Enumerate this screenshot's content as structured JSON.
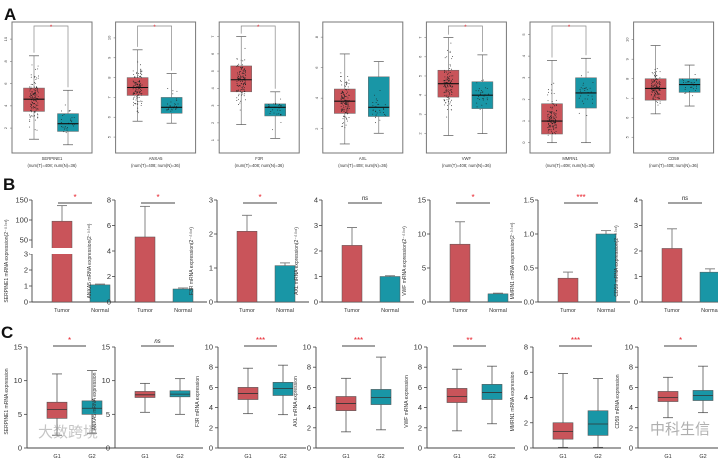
{
  "panel_letters": [
    "A",
    "B",
    "C"
  ],
  "colors": {
    "tumor": "#c9545a",
    "normal": "#1996a6",
    "sig": "#e8202a",
    "ns": "#222222"
  },
  "watermark": {
    "left": "大数跨境",
    "right": "中科生信"
  },
  "chart_data": [
    {
      "panel": "A",
      "type": "boxplot",
      "groups": [
        "Tumor",
        "Normal"
      ],
      "counts_label": "(num(T)=408; num(N)=36)",
      "charts": [
        {
          "gene": "SERPINE1",
          "ylim": [
            0.3,
            11
          ],
          "ticks": [
            2,
            4,
            6,
            8,
            10
          ],
          "sig": "*",
          "boxes": [
            [
              1.0,
              3.5,
              4.6,
              5.6,
              8.5
            ],
            [
              0.5,
              1.7,
              2.4,
              3.3,
              5.4
            ]
          ]
        },
        {
          "gene": "ANXA5",
          "ylim": [
            4.5,
            10.5
          ],
          "ticks": [
            5,
            6,
            7,
            8,
            9,
            10
          ],
          "sig": "*",
          "boxes": [
            [
              5.8,
              7.1,
              7.5,
              8.0,
              9.4
            ],
            [
              5.7,
              6.2,
              6.5,
              7.0,
              8.2
            ]
          ]
        },
        {
          "gene": "F3R",
          "ylim": [
            0.6,
            7.5
          ],
          "ticks": [
            1,
            2,
            3,
            4,
            5,
            6,
            7
          ],
          "sig": "*",
          "boxes": [
            [
              1.9,
              3.8,
              4.5,
              5.3,
              7.0
            ],
            [
              1.1,
              2.4,
              2.9,
              3.1,
              3.8
            ]
          ]
        },
        {
          "gene": "AXL",
          "ylim": [
            0.8,
            8.6
          ],
          "ticks": [
            2,
            4,
            6,
            8
          ],
          "sig": "",
          "boxes": [
            [
              1.0,
              3.0,
              3.8,
              4.6,
              6.9
            ],
            [
              1.7,
              2.8,
              3.4,
              5.4,
              6.4
            ]
          ]
        },
        {
          "gene": "VWF",
          "ylim": [
            1.3,
            7.5
          ],
          "ticks": [
            2,
            3,
            4,
            5,
            6,
            7
          ],
          "sig": "*",
          "boxes": [
            [
              1.9,
              3.9,
              4.6,
              5.3,
              7.0
            ],
            [
              2.0,
              3.3,
              4.0,
              4.7,
              6.1
            ]
          ]
        },
        {
          "gene": "MMRN1",
          "ylim": [
            -0.2,
            5.3
          ],
          "ticks": [
            0,
            1,
            2,
            3,
            4,
            5
          ],
          "sig": "*",
          "boxes": [
            [
              0.0,
              0.4,
              1.0,
              1.8,
              3.8
            ],
            [
              0.0,
              1.6,
              2.3,
              3.0,
              3.9
            ]
          ]
        },
        {
          "gene": "CD59",
          "ylim": [
            4.5,
            10.6
          ],
          "ticks": [
            5,
            6,
            7,
            8,
            9,
            10
          ],
          "sig": "",
          "boxes": [
            [
              6.2,
              6.9,
              7.5,
              8.0,
              9.7
            ],
            [
              6.6,
              7.3,
              7.7,
              8.0,
              8.7
            ]
          ]
        }
      ]
    },
    {
      "panel": "B",
      "type": "bar",
      "categories": [
        "Tumor",
        "Normal"
      ],
      "ylabel_suffix": " mRNA expression(2⁻ᐞᐞᶜᵗ)",
      "charts": [
        {
          "gene": "SERPINE1",
          "ylim": [
            0,
            150
          ],
          "ticks": [
            0,
            1,
            2,
            3,
            50,
            100,
            150
          ],
          "axis_break": [
            3,
            30
          ],
          "sig": "*",
          "values": [
            97,
            1.07
          ],
          "errors": [
            136,
            1.12
          ]
        },
        {
          "gene": "ANXA5",
          "ylim": [
            0,
            8
          ],
          "ticks": [
            0,
            2,
            4,
            6,
            8
          ],
          "sig": "*",
          "values": [
            5.1,
            1.02
          ],
          "errors": [
            7.5,
            1.1
          ]
        },
        {
          "gene": "F3R",
          "ylim": [
            0,
            3
          ],
          "ticks": [
            0,
            1,
            2,
            3
          ],
          "sig": "*",
          "values": [
            2.08,
            1.07
          ],
          "errors": [
            2.55,
            1.15
          ]
        },
        {
          "gene": "AXL",
          "ylim": [
            0,
            4
          ],
          "ticks": [
            0,
            1,
            2,
            3,
            4
          ],
          "sig": "ns",
          "values": [
            2.22,
            1.0
          ],
          "errors": [
            2.92,
            1.03
          ]
        },
        {
          "gene": "VWF",
          "ylim": [
            0,
            15
          ],
          "ticks": [
            0,
            5,
            10,
            15
          ],
          "sig": "*",
          "values": [
            8.5,
            1.2
          ],
          "errors": [
            11.8,
            1.3
          ]
        },
        {
          "gene": "MMRN1",
          "ylim": [
            0,
            1.5
          ],
          "ticks": [
            "0.0",
            "0.5",
            "1.0",
            "1.5"
          ],
          "sig": "***",
          "values": [
            0.35,
            1.0
          ],
          "errors": [
            0.44,
            1.05
          ]
        },
        {
          "gene": "CD59",
          "ylim": [
            0,
            4
          ],
          "ticks": [
            0,
            1,
            2,
            3,
            4
          ],
          "sig": "ns",
          "values": [
            2.1,
            1.17
          ],
          "errors": [
            2.87,
            1.3
          ]
        }
      ]
    },
    {
      "panel": "C",
      "type": "boxplot",
      "groups": [
        "G1",
        "G2"
      ],
      "ylabel_suffix": " mRNA expression",
      "charts": [
        {
          "gene": "SERPINE1",
          "ylim": [
            0,
            15
          ],
          "ticks": [
            0,
            5,
            10,
            15
          ],
          "sig": "*",
          "boxes": [
            [
              1.9,
              4.4,
              5.7,
              6.8,
              11.0
            ],
            [
              2.2,
              5.0,
              5.9,
              7.0,
              11.5
            ]
          ]
        },
        {
          "gene": "ANXA5",
          "ylim": [
            0,
            15
          ],
          "ticks": [
            0,
            5,
            10,
            15
          ],
          "sig": "ns",
          "boxes": [
            [
              5.3,
              7.5,
              7.9,
              8.4,
              9.6
            ],
            [
              5.0,
              7.6,
              8.0,
              8.5,
              10.3
            ]
          ]
        },
        {
          "gene": "F3R",
          "ylim": [
            0,
            10
          ],
          "ticks": [
            0,
            2,
            4,
            6,
            8,
            10
          ],
          "sig": "***",
          "boxes": [
            [
              3.4,
              4.8,
              5.4,
              6.0,
              7.9
            ],
            [
              3.3,
              5.2,
              5.9,
              6.5,
              8.2
            ]
          ]
        },
        {
          "gene": "AXL",
          "ylim": [
            0,
            10
          ],
          "ticks": [
            0,
            2,
            4,
            6,
            8,
            10
          ],
          "sig": "***",
          "boxes": [
            [
              1.6,
              3.7,
              4.4,
              5.1,
              6.9
            ],
            [
              1.8,
              4.3,
              5.0,
              5.8,
              9.0
            ]
          ]
        },
        {
          "gene": "VWF",
          "ylim": [
            0,
            10
          ],
          "ticks": [
            0,
            2,
            4,
            6,
            8,
            10
          ],
          "sig": "**",
          "boxes": [
            [
              1.7,
              4.5,
              5.1,
              5.9,
              7.8
            ],
            [
              2.4,
              4.8,
              5.5,
              6.3,
              8.1
            ]
          ]
        },
        {
          "gene": "MMRN1",
          "ylim": [
            0,
            8
          ],
          "ticks": [
            0,
            2,
            4,
            6,
            8
          ],
          "sig": "***",
          "boxes": [
            [
              0.05,
              0.7,
              1.3,
              2.0,
              5.9
            ],
            [
              0.05,
              1.0,
              1.9,
              2.95,
              5.5
            ]
          ]
        },
        {
          "gene": "CD59",
          "ylim": [
            0,
            10
          ],
          "ticks": [
            0,
            2,
            4,
            6,
            8,
            10
          ],
          "sig": "*",
          "boxes": [
            [
              3.0,
              4.6,
              5.0,
              5.6,
              7.0
            ],
            [
              3.5,
              4.7,
              5.2,
              5.7,
              8.1
            ]
          ]
        }
      ]
    }
  ]
}
